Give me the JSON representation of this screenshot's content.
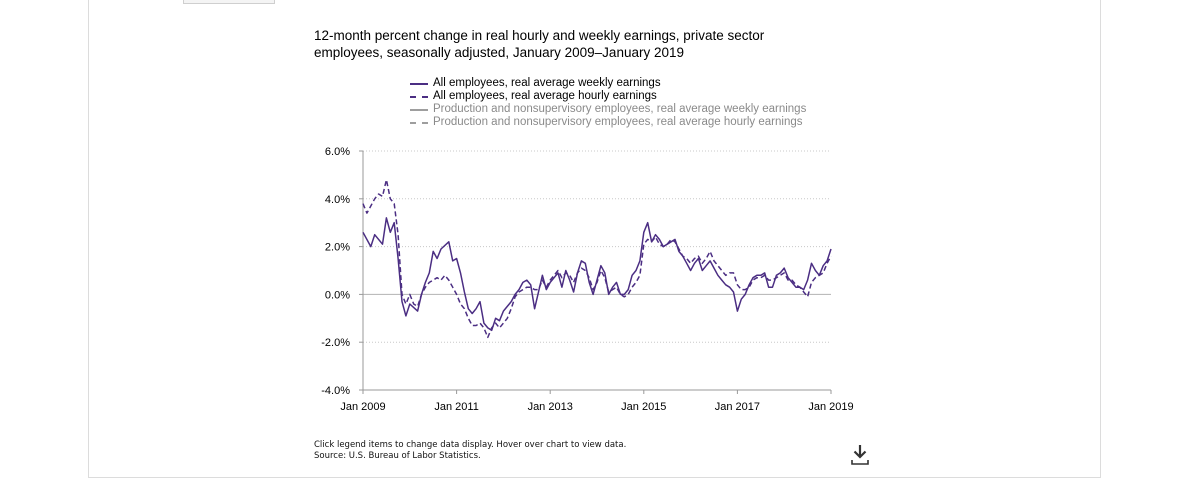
{
  "chart_data": {
    "type": "line",
    "title": "12-month percent change in real hourly and weekly earnings, private sector employees, seasonally adjusted, January 2009–January 2019",
    "xlabel": "",
    "ylabel": "",
    "xlim": [
      "2009-01",
      "2019-01"
    ],
    "ylim": [
      -4.0,
      6.0
    ],
    "ytick_labels": [
      "6.0%",
      "4.0%",
      "2.0%",
      "0.0%",
      "-2.0%",
      "-4.0%"
    ],
    "ytick_values": [
      6,
      4,
      2,
      0,
      -2,
      -4
    ],
    "xtick_labels": [
      "Jan 2009",
      "Jan 2011",
      "Jan 2013",
      "Jan 2015",
      "Jan 2017",
      "Jan 2019"
    ],
    "xtick_values": [
      "2009-01",
      "2011-01",
      "2013-01",
      "2015-01",
      "2017-01",
      "2019-01"
    ],
    "grid": "horizontal dotted",
    "legend_position": "top",
    "series": [
      {
        "name": "All employees, real average weekly earnings",
        "color": "#4b2e83",
        "style": "solid",
        "visible": true,
        "points": [
          [
            "2009-01",
            2.6
          ],
          [
            "2009-03",
            2.0
          ],
          [
            "2009-04",
            2.5
          ],
          [
            "2009-06",
            2.1
          ],
          [
            "2009-07",
            3.2
          ],
          [
            "2009-08",
            2.6
          ],
          [
            "2009-09",
            3.0
          ],
          [
            "2009-10",
            1.5
          ],
          [
            "2009-11",
            -0.3
          ],
          [
            "2009-12",
            -0.9
          ],
          [
            "2010-01",
            -0.4
          ],
          [
            "2010-03",
            -0.7
          ],
          [
            "2010-04",
            0.0
          ],
          [
            "2010-05",
            0.5
          ],
          [
            "2010-06",
            0.9
          ],
          [
            "2010-07",
            1.8
          ],
          [
            "2010-08",
            1.5
          ],
          [
            "2010-09",
            1.9
          ],
          [
            "2010-11",
            2.2
          ],
          [
            "2010-12",
            1.4
          ],
          [
            "2011-01",
            1.5
          ],
          [
            "2011-02",
            0.9
          ],
          [
            "2011-03",
            0.1
          ],
          [
            "2011-04",
            -0.6
          ],
          [
            "2011-05",
            -0.8
          ],
          [
            "2011-06",
            -0.6
          ],
          [
            "2011-07",
            -0.3
          ],
          [
            "2011-08",
            -1.2
          ],
          [
            "2011-09",
            -1.4
          ],
          [
            "2011-10",
            -1.5
          ],
          [
            "2011-11",
            -1.0
          ],
          [
            "2011-12",
            -1.1
          ],
          [
            "2012-01",
            -0.7
          ],
          [
            "2012-02",
            -0.5
          ],
          [
            "2012-03",
            -0.3
          ],
          [
            "2012-04",
            0.0
          ],
          [
            "2012-05",
            0.2
          ],
          [
            "2012-06",
            0.5
          ],
          [
            "2012-07",
            0.6
          ],
          [
            "2012-08",
            0.4
          ],
          [
            "2012-09",
            -0.6
          ],
          [
            "2012-10",
            0.1
          ],
          [
            "2012-11",
            0.8
          ],
          [
            "2012-12",
            0.2
          ],
          [
            "2013-01",
            0.5
          ],
          [
            "2013-02",
            0.7
          ],
          [
            "2013-03",
            0.9
          ],
          [
            "2013-04",
            0.3
          ],
          [
            "2013-05",
            1.0
          ],
          [
            "2013-06",
            0.6
          ],
          [
            "2013-07",
            0.1
          ],
          [
            "2013-08",
            0.9
          ],
          [
            "2013-09",
            1.4
          ],
          [
            "2013-10",
            1.3
          ],
          [
            "2013-11",
            0.5
          ],
          [
            "2013-12",
            0.0
          ],
          [
            "2014-01",
            0.6
          ],
          [
            "2014-02",
            1.2
          ],
          [
            "2014-03",
            0.9
          ],
          [
            "2014-04",
            0.0
          ],
          [
            "2014-05",
            0.3
          ],
          [
            "2014-06",
            0.5
          ],
          [
            "2014-07",
            0.0
          ],
          [
            "2014-08",
            0.0
          ],
          [
            "2014-09",
            0.2
          ],
          [
            "2014-10",
            0.8
          ],
          [
            "2014-11",
            1.0
          ],
          [
            "2014-12",
            1.4
          ],
          [
            "2015-01",
            2.6
          ],
          [
            "2015-02",
            3.0
          ],
          [
            "2015-03",
            2.2
          ],
          [
            "2015-04",
            2.5
          ],
          [
            "2015-05",
            2.3
          ],
          [
            "2015-06",
            2.0
          ],
          [
            "2015-07",
            2.1
          ],
          [
            "2015-08",
            2.2
          ],
          [
            "2015-09",
            2.3
          ],
          [
            "2015-10",
            1.8
          ],
          [
            "2015-11",
            1.6
          ],
          [
            "2015-12",
            1.3
          ],
          [
            "2016-01",
            1.0
          ],
          [
            "2016-02",
            1.3
          ],
          [
            "2016-03",
            1.5
          ],
          [
            "2016-04",
            1.0
          ],
          [
            "2016-05",
            1.2
          ],
          [
            "2016-06",
            1.4
          ],
          [
            "2016-07",
            1.1
          ],
          [
            "2016-08",
            0.8
          ],
          [
            "2016-09",
            0.6
          ],
          [
            "2016-10",
            0.4
          ],
          [
            "2016-11",
            0.3
          ],
          [
            "2016-12",
            0.1
          ],
          [
            "2017-01",
            -0.7
          ],
          [
            "2017-02",
            -0.2
          ],
          [
            "2017-03",
            0.0
          ],
          [
            "2017-04",
            0.4
          ],
          [
            "2017-05",
            0.7
          ],
          [
            "2017-06",
            0.8
          ],
          [
            "2017-07",
            0.8
          ],
          [
            "2017-08",
            0.9
          ],
          [
            "2017-09",
            0.3
          ],
          [
            "2017-10",
            0.3
          ],
          [
            "2017-11",
            0.8
          ],
          [
            "2017-12",
            0.9
          ],
          [
            "2018-01",
            1.1
          ],
          [
            "2018-02",
            0.7
          ],
          [
            "2018-03",
            0.5
          ],
          [
            "2018-04",
            0.3
          ],
          [
            "2018-05",
            0.3
          ],
          [
            "2018-06",
            0.2
          ],
          [
            "2018-07",
            0.6
          ],
          [
            "2018-08",
            1.3
          ],
          [
            "2018-09",
            1.0
          ],
          [
            "2018-10",
            0.8
          ],
          [
            "2018-11",
            1.2
          ],
          [
            "2018-12",
            1.4
          ],
          [
            "2019-01",
            1.9
          ]
        ]
      },
      {
        "name": "All employees, real average hourly earnings",
        "color": "#4b2e83",
        "style": "dashed",
        "visible": true,
        "points": [
          [
            "2009-01",
            3.8
          ],
          [
            "2009-02",
            3.4
          ],
          [
            "2009-03",
            3.7
          ],
          [
            "2009-04",
            4.0
          ],
          [
            "2009-05",
            4.2
          ],
          [
            "2009-06",
            4.1
          ],
          [
            "2009-07",
            4.8
          ],
          [
            "2009-08",
            4.0
          ],
          [
            "2009-09",
            3.8
          ],
          [
            "2009-10",
            2.5
          ],
          [
            "2009-11",
            0.0
          ],
          [
            "2009-12",
            -0.4
          ],
          [
            "2010-01",
            0.0
          ],
          [
            "2010-02",
            -0.4
          ],
          [
            "2010-03",
            -0.5
          ],
          [
            "2010-04",
            0.0
          ],
          [
            "2010-05",
            0.3
          ],
          [
            "2010-06",
            0.5
          ],
          [
            "2010-07",
            0.6
          ],
          [
            "2010-08",
            0.7
          ],
          [
            "2010-09",
            0.6
          ],
          [
            "2010-10",
            0.8
          ],
          [
            "2010-11",
            0.6
          ],
          [
            "2010-12",
            0.3
          ],
          [
            "2011-01",
            0.0
          ],
          [
            "2011-02",
            -0.4
          ],
          [
            "2011-03",
            -0.6
          ],
          [
            "2011-04",
            -1.0
          ],
          [
            "2011-05",
            -1.3
          ],
          [
            "2011-06",
            -1.3
          ],
          [
            "2011-07",
            -1.2
          ],
          [
            "2011-08",
            -1.4
          ],
          [
            "2011-09",
            -1.8
          ],
          [
            "2011-10",
            -1.4
          ],
          [
            "2011-11",
            -1.2
          ],
          [
            "2011-12",
            -1.4
          ],
          [
            "2012-01",
            -1.2
          ],
          [
            "2012-02",
            -1.0
          ],
          [
            "2012-03",
            -0.6
          ],
          [
            "2012-04",
            -0.1
          ],
          [
            "2012-05",
            0.1
          ],
          [
            "2012-06",
            0.2
          ],
          [
            "2012-07",
            0.3
          ],
          [
            "2012-08",
            0.3
          ],
          [
            "2012-09",
            0.2
          ],
          [
            "2012-10",
            0.2
          ],
          [
            "2012-11",
            0.6
          ],
          [
            "2012-12",
            0.3
          ],
          [
            "2013-01",
            0.6
          ],
          [
            "2013-02",
            0.8
          ],
          [
            "2013-03",
            1.0
          ],
          [
            "2013-04",
            0.7
          ],
          [
            "2013-05",
            0.9
          ],
          [
            "2013-06",
            0.8
          ],
          [
            "2013-07",
            0.5
          ],
          [
            "2013-08",
            0.9
          ],
          [
            "2013-09",
            1.1
          ],
          [
            "2013-10",
            1.0
          ],
          [
            "2013-11",
            0.7
          ],
          [
            "2013-12",
            0.2
          ],
          [
            "2014-01",
            0.5
          ],
          [
            "2014-02",
            1.0
          ],
          [
            "2014-03",
            0.7
          ],
          [
            "2014-04",
            0.1
          ],
          [
            "2014-05",
            0.2
          ],
          [
            "2014-06",
            0.3
          ],
          [
            "2014-07",
            0.0
          ],
          [
            "2014-08",
            -0.1
          ],
          [
            "2014-09",
            0.0
          ],
          [
            "2014-10",
            0.3
          ],
          [
            "2014-11",
            0.5
          ],
          [
            "2014-12",
            0.8
          ],
          [
            "2015-01",
            2.1
          ],
          [
            "2015-02",
            2.3
          ],
          [
            "2015-03",
            2.2
          ],
          [
            "2015-04",
            2.4
          ],
          [
            "2015-05",
            2.1
          ],
          [
            "2015-06",
            2.0
          ],
          [
            "2015-07",
            2.1
          ],
          [
            "2015-08",
            2.3
          ],
          [
            "2015-09",
            2.2
          ],
          [
            "2015-10",
            1.9
          ],
          [
            "2015-11",
            1.6
          ],
          [
            "2015-12",
            1.5
          ],
          [
            "2016-01",
            1.3
          ],
          [
            "2016-02",
            1.5
          ],
          [
            "2016-03",
            1.6
          ],
          [
            "2016-04",
            1.3
          ],
          [
            "2016-05",
            1.5
          ],
          [
            "2016-06",
            1.8
          ],
          [
            "2016-07",
            1.4
          ],
          [
            "2016-08",
            1.2
          ],
          [
            "2016-09",
            1.0
          ],
          [
            "2016-10",
            0.8
          ],
          [
            "2016-11",
            0.9
          ],
          [
            "2016-12",
            0.9
          ],
          [
            "2017-01",
            0.4
          ],
          [
            "2017-02",
            0.2
          ],
          [
            "2017-03",
            0.2
          ],
          [
            "2017-04",
            0.3
          ],
          [
            "2017-05",
            0.6
          ],
          [
            "2017-06",
            0.7
          ],
          [
            "2017-07",
            0.7
          ],
          [
            "2017-08",
            0.8
          ],
          [
            "2017-09",
            0.6
          ],
          [
            "2017-10",
            0.6
          ],
          [
            "2017-11",
            0.7
          ],
          [
            "2017-12",
            0.8
          ],
          [
            "2018-01",
            0.9
          ],
          [
            "2018-02",
            0.6
          ],
          [
            "2018-03",
            0.6
          ],
          [
            "2018-04",
            0.4
          ],
          [
            "2018-05",
            0.3
          ],
          [
            "2018-06",
            0.1
          ],
          [
            "2018-07",
            -0.1
          ],
          [
            "2018-08",
            0.5
          ],
          [
            "2018-09",
            0.7
          ],
          [
            "2018-10",
            0.8
          ],
          [
            "2018-11",
            0.9
          ],
          [
            "2018-12",
            1.3
          ],
          [
            "2019-01",
            1.6
          ]
        ]
      },
      {
        "name": "Production and nonsupervisory employees, real average weekly earnings",
        "color": "#9e9e9e",
        "style": "solid",
        "visible": false,
        "points": []
      },
      {
        "name": "Production and nonsupervisory employees, real average hourly earnings",
        "color": "#9e9e9e",
        "style": "dashed",
        "visible": false,
        "points": []
      }
    ]
  },
  "footnote": {
    "line1": "Click legend items to change data display. Hover over chart to view data.",
    "line2": "Source: U.S. Bureau of Labor Statistics."
  },
  "download": {
    "icon": "download-icon"
  }
}
